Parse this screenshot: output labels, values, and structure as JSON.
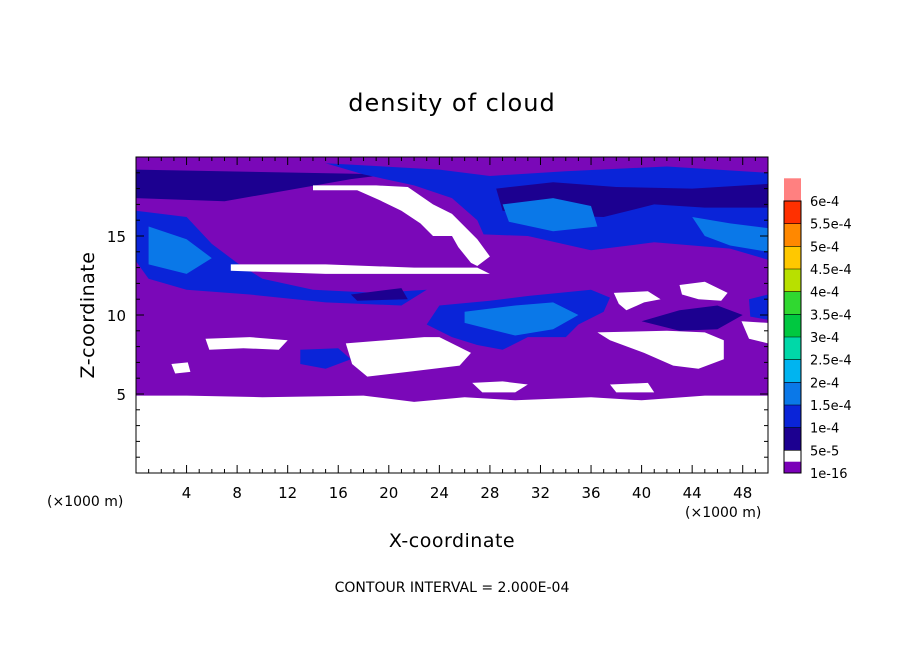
{
  "chart_data": {
    "type": "heatmap",
    "title": "density of cloud",
    "xlabel": "X-coordinate",
    "ylabel": "Z-coordinate",
    "x_unit_left": "(×1000 m)",
    "x_unit_right": "(×1000 m)",
    "xlim": [
      0,
      50
    ],
    "ylim": [
      0,
      20
    ],
    "x_ticks": [
      4,
      8,
      12,
      16,
      20,
      24,
      28,
      32,
      36,
      40,
      44,
      48
    ],
    "y_ticks": [
      5,
      10,
      15
    ],
    "colorbar": {
      "labels": [
        "1e-16",
        "5e-5",
        "1e-4",
        "1.5e-4",
        "2e-4",
        "2.5e-4",
        "3e-4",
        "3.5e-4",
        "4e-4",
        "4.5e-4",
        "5e-4",
        "5.5e-4",
        "6e-4"
      ],
      "colors": [
        "#7a00b8",
        "#1c0090",
        "#0a24d8",
        "#0a78e8",
        "#00b4f0",
        "#00d8a8",
        "#00c840",
        "#30d830",
        "#b8e000",
        "#ffc800",
        "#ff8800",
        "#ff3000",
        "#ff8080"
      ]
    },
    "field_color": "#7a08b8",
    "regions": [
      {
        "level": 1,
        "pts": [
          [
            0,
            17.4
          ],
          [
            7,
            17.2
          ],
          [
            12,
            17.9
          ],
          [
            17,
            18.6
          ],
          [
            20,
            18.9
          ],
          [
            0,
            19.2
          ]
        ]
      },
      {
        "level": 2,
        "pts": [
          [
            0,
            16.6
          ],
          [
            4,
            16.2
          ],
          [
            6,
            14.5
          ],
          [
            8,
            13.3
          ],
          [
            10,
            12.3
          ],
          [
            14,
            11.6
          ],
          [
            19,
            11.4
          ],
          [
            23,
            11.6
          ],
          [
            21,
            10.6
          ],
          [
            15,
            10.8
          ],
          [
            9,
            11.3
          ],
          [
            4,
            11.6
          ],
          [
            1,
            12.3
          ],
          [
            0,
            13.4
          ]
        ]
      },
      {
        "level": 3,
        "pts": [
          [
            1,
            15.6
          ],
          [
            4,
            14.8
          ],
          [
            6,
            13.6
          ],
          [
            4,
            12.6
          ],
          [
            1,
            13.2
          ]
        ]
      },
      {
        "level": 2,
        "pts": [
          [
            15,
            19.6
          ],
          [
            24,
            19.2
          ],
          [
            28,
            18.8
          ],
          [
            34,
            19.1
          ],
          [
            42,
            19.4
          ],
          [
            50,
            19.0
          ],
          [
            50,
            13.5
          ],
          [
            47,
            14.2
          ],
          [
            41,
            14.6
          ],
          [
            36,
            14.1
          ],
          [
            31,
            15.0
          ],
          [
            27.5,
            15.1
          ],
          [
            27,
            16.0
          ],
          [
            25,
            17.4
          ],
          [
            22,
            18.2
          ],
          [
            18,
            18.9
          ]
        ]
      },
      {
        "level": 1,
        "pts": [
          [
            28.5,
            18.0
          ],
          [
            33,
            18.4
          ],
          [
            38,
            18.1
          ],
          [
            44,
            18.0
          ],
          [
            50,
            18.3
          ],
          [
            50,
            16.8
          ],
          [
            45,
            16.8
          ],
          [
            41,
            17.0
          ],
          [
            37,
            16.2
          ],
          [
            33,
            16.3
          ],
          [
            29,
            16.6
          ]
        ]
      },
      {
        "level": 3,
        "pts": [
          [
            29,
            17.0
          ],
          [
            33,
            17.4
          ],
          [
            36,
            16.9
          ],
          [
            36.5,
            15.6
          ],
          [
            33,
            15.3
          ],
          [
            29.5,
            15.9
          ]
        ]
      },
      {
        "level": 3,
        "pts": [
          [
            44,
            16.2
          ],
          [
            47,
            15.8
          ],
          [
            50,
            15.5
          ],
          [
            50,
            14.0
          ],
          [
            47,
            14.4
          ],
          [
            45,
            15.0
          ]
        ]
      },
      {
        "level": 2,
        "pts": [
          [
            24,
            10.6
          ],
          [
            28,
            10.9
          ],
          [
            31,
            11.2
          ],
          [
            36,
            11.6
          ],
          [
            37.5,
            11.1
          ],
          [
            37,
            10.2
          ],
          [
            35,
            9.4
          ],
          [
            34,
            8.6
          ],
          [
            31,
            8.6
          ],
          [
            29,
            7.8
          ],
          [
            27,
            8.1
          ],
          [
            25,
            8.6
          ],
          [
            23,
            9.4
          ]
        ]
      },
      {
        "level": 3,
        "pts": [
          [
            26,
            10.2
          ],
          [
            30,
            10.6
          ],
          [
            33,
            10.8
          ],
          [
            35,
            10.0
          ],
          [
            33,
            9.1
          ],
          [
            30,
            8.7
          ],
          [
            28,
            9.1
          ],
          [
            26,
            9.5
          ]
        ]
      },
      {
        "level": 2,
        "pts": [
          [
            13,
            7.8
          ],
          [
            16,
            7.9
          ],
          [
            17,
            7.2
          ],
          [
            15,
            6.6
          ],
          [
            13,
            6.9
          ]
        ]
      },
      {
        "level": 1,
        "pts": [
          [
            40,
            9.6
          ],
          [
            43,
            10.3
          ],
          [
            46,
            10.6
          ],
          [
            48,
            10.0
          ],
          [
            46,
            9.1
          ],
          [
            43,
            9.0
          ]
        ]
      },
      {
        "level": 2,
        "pts": [
          [
            48.5,
            11.0
          ],
          [
            50,
            11.3
          ],
          [
            50,
            9.7
          ],
          [
            48.6,
            9.9
          ]
        ]
      },
      {
        "level": 1,
        "pts": [
          [
            17,
            11.3
          ],
          [
            21,
            11.7
          ],
          [
            21.5,
            11.0
          ],
          [
            17.5,
            10.9
          ]
        ]
      }
    ],
    "holes": [
      {
        "pts": [
          [
            0,
            0
          ],
          [
            50,
            0
          ],
          [
            50,
            4.9
          ],
          [
            45,
            4.9
          ],
          [
            40,
            4.6
          ],
          [
            36,
            4.8
          ],
          [
            30,
            4.6
          ],
          [
            26,
            4.8
          ],
          [
            22,
            4.5
          ],
          [
            18,
            4.9
          ],
          [
            10,
            4.8
          ],
          [
            4,
            4.9
          ],
          [
            0,
            4.9
          ]
        ]
      },
      {
        "pts": [
          [
            14,
            18.2
          ],
          [
            19,
            18.2
          ],
          [
            21.5,
            18.1
          ],
          [
            23.5,
            17.0
          ],
          [
            25,
            16.4
          ],
          [
            26,
            15.6
          ],
          [
            27,
            14.8
          ],
          [
            28,
            13.7
          ],
          [
            27,
            13.1
          ],
          [
            26.5,
            13.3
          ],
          [
            25.5,
            14.3
          ],
          [
            25,
            15.0
          ],
          [
            23.5,
            15.0
          ],
          [
            22.5,
            15.8
          ],
          [
            21,
            16.6
          ],
          [
            19.2,
            17.3
          ],
          [
            17.5,
            17.9
          ],
          [
            14,
            17.9
          ]
        ]
      },
      {
        "pts": [
          [
            7.5,
            13.2
          ],
          [
            15,
            13.2
          ],
          [
            22,
            13.0
          ],
          [
            27,
            13.0
          ],
          [
            28,
            12.6
          ],
          [
            22,
            12.6
          ],
          [
            15,
            12.6
          ],
          [
            7.5,
            12.8
          ]
        ]
      },
      {
        "pts": [
          [
            37.8,
            11.4
          ],
          [
            40.5,
            11.5
          ],
          [
            41.5,
            11.0
          ],
          [
            40.2,
            10.8
          ],
          [
            38.8,
            10.3
          ],
          [
            38.2,
            10.7
          ]
        ]
      },
      {
        "pts": [
          [
            43,
            11.9
          ],
          [
            45,
            12.1
          ],
          [
            46.8,
            11.4
          ],
          [
            46.3,
            10.9
          ],
          [
            44.5,
            11.0
          ],
          [
            43.2,
            11.3
          ]
        ]
      },
      {
        "pts": [
          [
            47.9,
            9.6
          ],
          [
            50,
            9.5
          ],
          [
            50,
            8.2
          ],
          [
            48.5,
            8.5
          ]
        ]
      },
      {
        "pts": [
          [
            36.5,
            8.9
          ],
          [
            42,
            9.0
          ],
          [
            45,
            8.9
          ],
          [
            46.5,
            8.4
          ],
          [
            46.5,
            7.2
          ],
          [
            44.5,
            6.6
          ],
          [
            42.5,
            6.8
          ],
          [
            40.2,
            7.6
          ],
          [
            37.5,
            8.4
          ]
        ]
      },
      {
        "pts": [
          [
            5.5,
            8.5
          ],
          [
            9,
            8.6
          ],
          [
            12,
            8.4
          ],
          [
            11.3,
            7.8
          ],
          [
            8.5,
            7.9
          ],
          [
            5.8,
            7.8
          ]
        ]
      },
      {
        "pts": [
          [
            16.6,
            8.2
          ],
          [
            22.8,
            8.6
          ],
          [
            24,
            8.6
          ],
          [
            26.5,
            7.6
          ],
          [
            25.6,
            6.8
          ],
          [
            21.5,
            6.4
          ],
          [
            18.3,
            6.1
          ],
          [
            17.1,
            6.9
          ]
        ]
      },
      {
        "pts": [
          [
            2.8,
            6.9
          ],
          [
            4.1,
            7.0
          ],
          [
            4.3,
            6.4
          ],
          [
            3.1,
            6.3
          ]
        ]
      },
      {
        "pts": [
          [
            26.6,
            5.7
          ],
          [
            29,
            5.8
          ],
          [
            31,
            5.6
          ],
          [
            30,
            5.1
          ],
          [
            27.4,
            5.1
          ]
        ]
      },
      {
        "pts": [
          [
            37.5,
            5.6
          ],
          [
            40.5,
            5.7
          ],
          [
            41,
            5.1
          ],
          [
            38,
            5.1
          ]
        ]
      }
    ]
  },
  "footer": {
    "contour_interval": "CONTOUR INTERVAL = 2.000E-04"
  }
}
